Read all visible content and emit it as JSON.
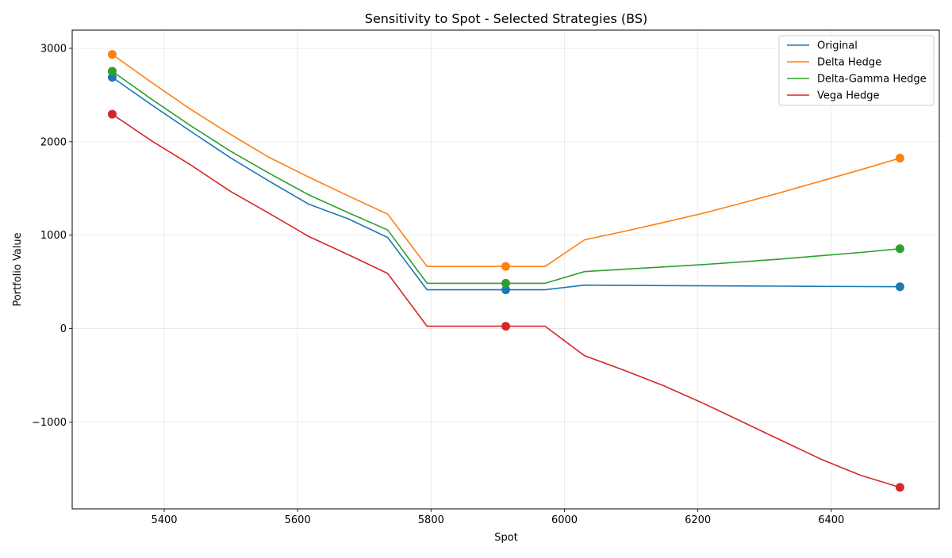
{
  "chart_data": {
    "type": "line",
    "title": "Sensitivity to Spot - Selected Strategies (BS)",
    "xlabel": "Spot",
    "ylabel": "Portfolio Value",
    "xlim": [
      5262,
      6562
    ],
    "ylim": [
      -1930,
      3195
    ],
    "xticks": [
      5400,
      5600,
      5800,
      6000,
      6200,
      6400
    ],
    "yticks": [
      -1000,
      0,
      1000,
      2000,
      3000
    ],
    "xtick_labels": [
      "5400",
      "5600",
      "5800",
      "6000",
      "6200",
      "6400"
    ],
    "ytick_labels": [
      "−1000",
      "0",
      "1000",
      "2000",
      "3000"
    ],
    "grid": true,
    "legend_position": "top-right",
    "x": [
      5322,
      5381,
      5440,
      5499,
      5558,
      5617,
      5676,
      5735,
      5794,
      5853,
      5912,
      5971,
      6030,
      6089,
      6148,
      6208,
      6267,
      6326,
      6385,
      6444,
      6503
    ],
    "markers_x": [
      5322,
      5912,
      6503
    ],
    "series": [
      {
        "name": "Original",
        "color": "#1f77b4",
        "values": [
          2690,
          2395,
          2110,
          1830,
          1575,
          1330,
          1175,
          975,
          415,
          415,
          415,
          415,
          465,
          462,
          460,
          458,
          456,
          454,
          452,
          450,
          448
        ],
        "markers": [
          2690,
          415,
          448
        ]
      },
      {
        "name": "Delta Hedge",
        "color": "#ff7f0e",
        "values": [
          2935,
          2635,
          2345,
          2080,
          1830,
          1620,
          1420,
          1225,
          665,
          665,
          665,
          665,
          950,
          1040,
          1135,
          1235,
          1345,
          1460,
          1580,
          1700,
          1825
        ],
        "markers": [
          2935,
          665,
          1825
        ]
      },
      {
        "name": "Delta-Gamma Hedge",
        "color": "#2ca02c",
        "values": [
          2755,
          2455,
          2170,
          1900,
          1660,
          1430,
          1240,
          1055,
          485,
          485,
          485,
          485,
          610,
          635,
          660,
          685,
          715,
          745,
          780,
          815,
          855
        ],
        "markers": [
          2755,
          485,
          855
        ]
      },
      {
        "name": "Vega Hedge",
        "color": "#d62728",
        "values": [
          2295,
          2010,
          1750,
          1470,
          1230,
          985,
          790,
          590,
          25,
          25,
          25,
          25,
          -290,
          -445,
          -610,
          -800,
          -1000,
          -1200,
          -1400,
          -1570,
          -1700
        ],
        "markers": [
          2295,
          25,
          -1700
        ]
      }
    ]
  }
}
